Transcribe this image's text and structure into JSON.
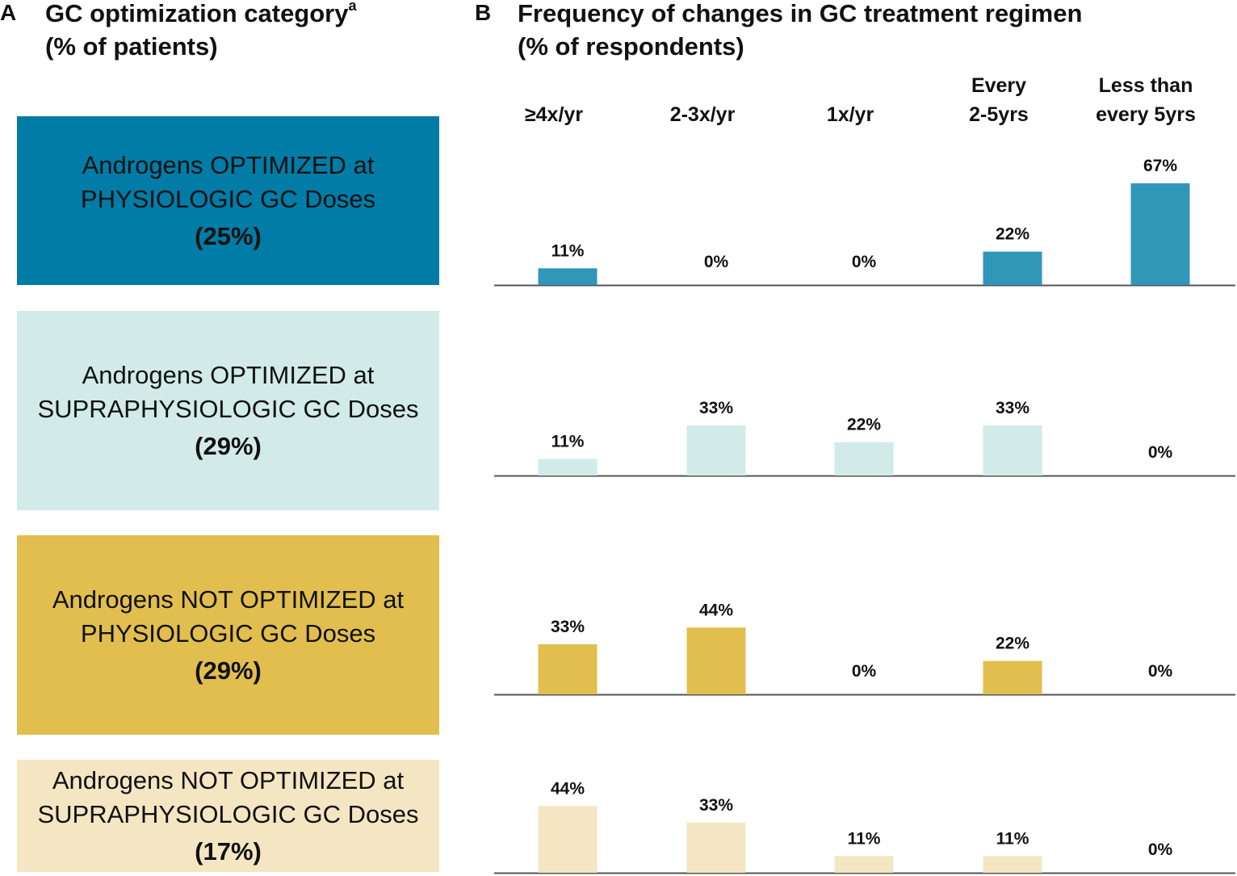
{
  "panel_a": {
    "letter": "A",
    "title_line1": "GC optimization category",
    "title_superscript": "a",
    "title_line2": "(% of patients)",
    "categories": [
      {
        "line1": "Androgens OPTIMIZED at",
        "line2": "PHYSIOLOGIC GC Doses",
        "pct": "(25%)",
        "color": "#007ca6",
        "text_color": "#111111"
      },
      {
        "line1": "Androgens OPTIMIZED at",
        "line2": "SUPRAPHYSIOLOGIC GC Doses",
        "pct": "(29%)",
        "color": "#d2ebe9",
        "text_color": "#111111"
      },
      {
        "line1": "Androgens NOT OPTIMIZED at",
        "line2": "PHYSIOLOGIC GC Doses",
        "pct": "(29%)",
        "color": "#e1be4e",
        "text_color": "#111111"
      },
      {
        "line1": "Androgens NOT OPTIMIZED at",
        "line2": "SUPRAPHYSIOLOGIC GC Doses",
        "pct": "(17%)",
        "color": "#f5e6c3",
        "text_color": "#111111"
      }
    ]
  },
  "panel_b": {
    "letter": "B",
    "title_line1": "Frequency of changes in GC treatment regimen",
    "title_line2": "(% of respondents)"
  },
  "chart_data": {
    "type": "bar",
    "title": "Frequency of changes in GC treatment regimen (% of respondents)",
    "categories": [
      [
        "≥4x/yr"
      ],
      [
        "2-3x/yr"
      ],
      [
        "1x/yr"
      ],
      [
        "Every",
        "2-5yrs"
      ],
      [
        "Less than",
        "every 5yrs"
      ]
    ],
    "unit": "%",
    "ylim": [
      0,
      100
    ],
    "series": [
      {
        "name": "Androgens OPTIMIZED at PHYSIOLOGIC GC Doses",
        "values": [
          11,
          0,
          0,
          22,
          67
        ],
        "color": "#3097b9"
      },
      {
        "name": "Androgens OPTIMIZED at SUPRAPHYSIOLOGIC GC Doses",
        "values": [
          11,
          33,
          22,
          33,
          0
        ],
        "color": "#d2ebe9"
      },
      {
        "name": "Androgens NOT OPTIMIZED at PHYSIOLOGIC GC Doses",
        "values": [
          33,
          44,
          0,
          22,
          0
        ],
        "color": "#e1be4e"
      },
      {
        "name": "Androgens NOT OPTIMIZED at SUPRAPHYSIOLOGIC GC Doses",
        "values": [
          44,
          33,
          11,
          11,
          0
        ],
        "color": "#f5e6c3"
      }
    ],
    "axis_color": "#555555"
  }
}
